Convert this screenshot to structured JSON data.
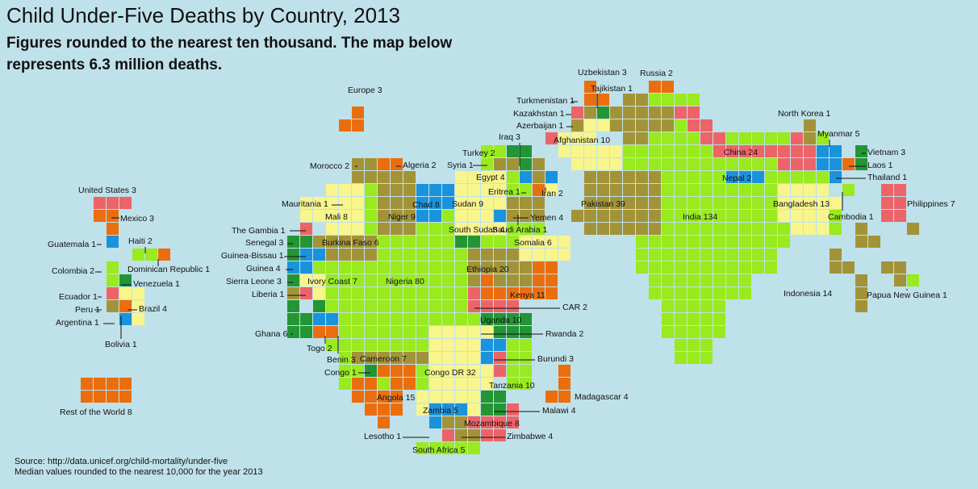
{
  "title": "Child Under-Five Deaths by Country, 2013",
  "subtitle": "Figures rounded to the nearest ten thousand. The map below represents 6.3 million deaths.",
  "source_line1": "Source: http://data.unicef.org/child-mortality/under-five",
  "source_line2": "Median values rounded to the nearest 10,000 for the year 2013",
  "colors": {
    "background": "#bfe1ea",
    "lime": "#99ea1e",
    "yellow": "#f8f58c",
    "olive": "#a39338",
    "green": "#239535",
    "blue": "#1a93dc",
    "orange": "#eb6e0e",
    "red": "#ec6467"
  },
  "units_note": "each square = 10,000 deaths",
  "countries": [
    {
      "name": "United States",
      "value": 3,
      "label": "United States 3"
    },
    {
      "name": "Mexico",
      "value": 3,
      "label": "Mexico 3"
    },
    {
      "name": "Guatemala",
      "value": 1,
      "label": "Guatemala 1"
    },
    {
      "name": "Haiti",
      "value": 2,
      "label": "Haiti 2"
    },
    {
      "name": "Dominican Republic",
      "value": 1,
      "label": "Dominican Republic 1"
    },
    {
      "name": "Colombia",
      "value": 2,
      "label": "Colombia 2"
    },
    {
      "name": "Venezuela",
      "value": 1,
      "label": "Venezuela 1"
    },
    {
      "name": "Ecuador",
      "value": 1,
      "label": "Ecuador 1"
    },
    {
      "name": "Peru",
      "value": 1,
      "label": "Peru 1"
    },
    {
      "name": "Brazil",
      "value": 4,
      "label": "Brazil 4"
    },
    {
      "name": "Argentina",
      "value": 1,
      "label": "Argentina 1"
    },
    {
      "name": "Bolivia",
      "value": 1,
      "label": "Bolivia 1"
    },
    {
      "name": "Rest of the World",
      "value": 8,
      "label": "Rest of the World 8"
    },
    {
      "name": "Europe",
      "value": 3,
      "label": "Europe 3"
    },
    {
      "name": "Morocco",
      "value": 2,
      "label": "Morocco 2"
    },
    {
      "name": "Algeria",
      "value": 2,
      "label": "Algeria 2"
    },
    {
      "name": "Mauritania",
      "value": 1,
      "label": "Mauritania 1"
    },
    {
      "name": "Mali",
      "value": 8,
      "label": "Mali 8"
    },
    {
      "name": "Niger",
      "value": 9,
      "label": "Niger 9"
    },
    {
      "name": "Chad",
      "value": 8,
      "label": "Chad 8"
    },
    {
      "name": "Sudan",
      "value": 9,
      "label": "Sudan 9"
    },
    {
      "name": "Syria",
      "value": 1,
      "label": "Syria 1"
    },
    {
      "name": "Turkey",
      "value": 2,
      "label": "Turkey 2"
    },
    {
      "name": "Egypt",
      "value": 4,
      "label": "Egypt 4"
    },
    {
      "name": "Iraq",
      "value": 3,
      "label": "Iraq 3"
    },
    {
      "name": "Eritrea",
      "value": 1,
      "label": "Eritrea 1"
    },
    {
      "name": "Iran",
      "value": 2,
      "label": "Iran 2"
    },
    {
      "name": "Yemen",
      "value": 4,
      "label": "Yemen 4"
    },
    {
      "name": "Saudi Arabia",
      "value": 1,
      "label": "Saudi Arabia 1"
    },
    {
      "name": "South Sudan",
      "value": 4,
      "label": "South Sudan 4"
    },
    {
      "name": "Somalia",
      "value": 6,
      "label": "Somalia 6"
    },
    {
      "name": "The Gambia",
      "value": 1,
      "label": "The Gambia 1"
    },
    {
      "name": "Senegal",
      "value": 3,
      "label": "Senegal 3"
    },
    {
      "name": "Burkina Faso",
      "value": 6,
      "label": "Burkina Faso 6"
    },
    {
      "name": "Guinea-Bissau",
      "value": 1,
      "label": "Guinea-Bissau 1"
    },
    {
      "name": "Guinea",
      "value": 4,
      "label": "Guinea 4"
    },
    {
      "name": "Sierra Leone",
      "value": 3,
      "label": "Sierra Leone 3"
    },
    {
      "name": "Ivory Coast",
      "value": 7,
      "label": "Ivory Coast 7"
    },
    {
      "name": "Nigeria",
      "value": 80,
      "label": "Nigeria 80"
    },
    {
      "name": "Liberia",
      "value": 1,
      "label": "Liberia 1"
    },
    {
      "name": "Ghana",
      "value": 6,
      "label": "Ghana 6"
    },
    {
      "name": "Togo",
      "value": 2,
      "label": "Togo 2"
    },
    {
      "name": "Benin",
      "value": 3,
      "label": "Benin 3"
    },
    {
      "name": "Cameroon",
      "value": 7,
      "label": "Cameroon 7"
    },
    {
      "name": "Ethiopia",
      "value": 20,
      "label": "Ethiopia 20"
    },
    {
      "name": "Kenya",
      "value": 11,
      "label": "Kenya 11"
    },
    {
      "name": "CAR",
      "value": 2,
      "label": "CAR 2"
    },
    {
      "name": "Uganda",
      "value": 10,
      "label": "Uganda 10"
    },
    {
      "name": "Rwanda",
      "value": 2,
      "label": "Rwanda 2"
    },
    {
      "name": "Burundi",
      "value": 3,
      "label": "Burundi 3"
    },
    {
      "name": "Congo",
      "value": 1,
      "label": "Congo 1"
    },
    {
      "name": "Congo DR",
      "value": 32,
      "label": "Congo DR 32"
    },
    {
      "name": "Tanzania",
      "value": 10,
      "label": "Tanzania 10"
    },
    {
      "name": "Angola",
      "value": 15,
      "label": "Angola 15"
    },
    {
      "name": "Zambia",
      "value": 5,
      "label": "Zambia 5"
    },
    {
      "name": "Malawi",
      "value": 4,
      "label": "Malawi 4"
    },
    {
      "name": "Mozambique",
      "value": 8,
      "label": "Mozambique 8"
    },
    {
      "name": "Madagascar",
      "value": 4,
      "label": "Madagascar 4"
    },
    {
      "name": "Lesotho",
      "value": 1,
      "label": "Lesotho 1"
    },
    {
      "name": "Zimbabwe",
      "value": 4,
      "label": "Zimbabwe 4"
    },
    {
      "name": "South Africa",
      "value": 5,
      "label": "South Africa 5"
    },
    {
      "name": "Uzbekistan",
      "value": 3,
      "label": "Uzbekistan 3"
    },
    {
      "name": "Russia",
      "value": 2,
      "label": "Russia 2"
    },
    {
      "name": "Tajikistan",
      "value": 1,
      "label": "Tajikistan 1"
    },
    {
      "name": "Turkmenistan",
      "value": 1,
      "label": "Turkmenistan 1"
    },
    {
      "name": "Kazakhstan",
      "value": 1,
      "label": "Kazakhstan 1"
    },
    {
      "name": "Azerbaijan",
      "value": 1,
      "label": "Azerbaijan 1"
    },
    {
      "name": "Afghanistan",
      "value": 10,
      "label": "Afghanistan 10"
    },
    {
      "name": "Pakistan",
      "value": 39,
      "label": "Pakistan 39"
    },
    {
      "name": "India",
      "value": 134,
      "label": "India 134"
    },
    {
      "name": "China",
      "value": 24,
      "label": "China 24"
    },
    {
      "name": "Nepal",
      "value": 2,
      "label": "Nepal 2"
    },
    {
      "name": "North Korea",
      "value": 1,
      "label": "North Korea 1"
    },
    {
      "name": "Myanmar",
      "value": 5,
      "label": "Myanmar 5"
    },
    {
      "name": "Vietnam",
      "value": 3,
      "label": "Vietnam 3"
    },
    {
      "name": "Laos",
      "value": 1,
      "label": "Laos 1"
    },
    {
      "name": "Thailand",
      "value": 1,
      "label": "Thailand 1"
    },
    {
      "name": "Bangladesh",
      "value": 13,
      "label": "Bangladesh 13"
    },
    {
      "name": "Cambodia",
      "value": 1,
      "label": "Cambodia 1"
    },
    {
      "name": "Philippines",
      "value": 7,
      "label": "Philippines 7"
    },
    {
      "name": "Indonesia",
      "value": 14,
      "label": "Indonesia 14"
    },
    {
      "name": "Papua New Guinea",
      "value": 1,
      "label": "Papua New Guinea 1"
    }
  ]
}
